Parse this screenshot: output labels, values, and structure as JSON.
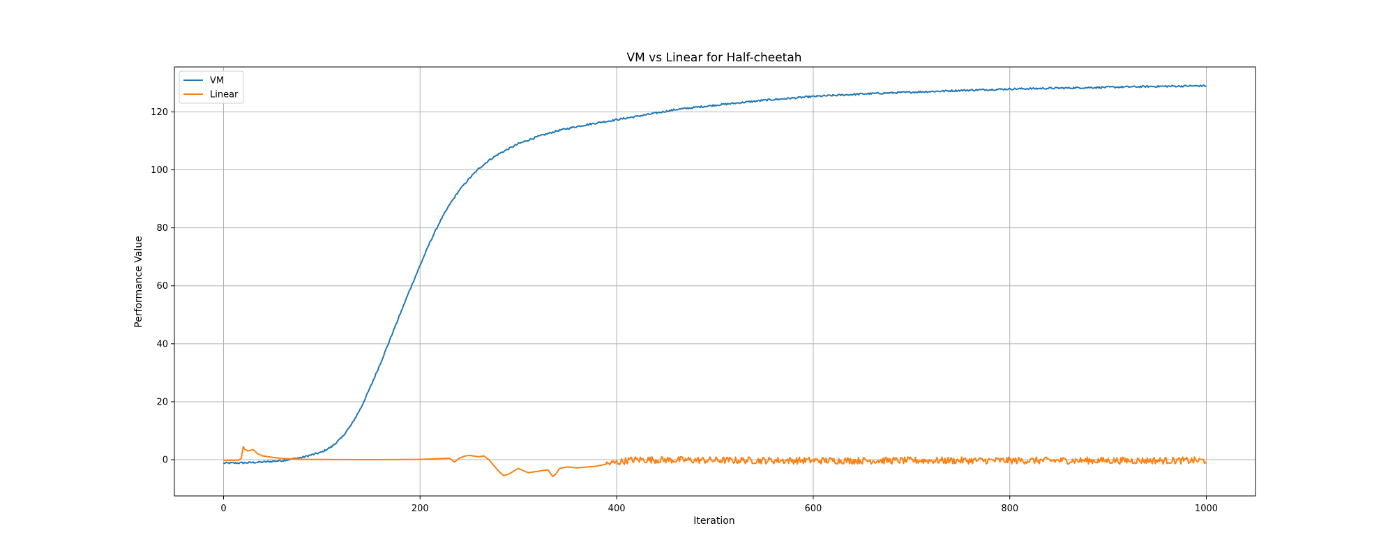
{
  "chart_data": {
    "type": "line",
    "title": "VM vs Linear for Half-cheetah",
    "xlabel": "Iteration",
    "ylabel": "Performance Value",
    "xlim": [
      -50,
      1050
    ],
    "ylim": [
      -12.5,
      135.5
    ],
    "xticks": [
      0,
      200,
      400,
      600,
      800,
      1000
    ],
    "yticks": [
      0,
      20,
      40,
      60,
      80,
      100,
      120
    ],
    "grid": true,
    "legend_position": "top-left",
    "series": [
      {
        "name": "VM",
        "color": "#1f77b4",
        "noise": 0.3,
        "x": [
          0,
          20,
          40,
          60,
          80,
          100,
          110,
          120,
          130,
          140,
          150,
          160,
          170,
          180,
          190,
          200,
          210,
          220,
          230,
          240,
          250,
          260,
          270,
          280,
          300,
          320,
          340,
          360,
          380,
          400,
          430,
          460,
          500,
          550,
          600,
          650,
          700,
          750,
          800,
          850,
          900,
          950,
          1000
        ],
        "y": [
          -1.2,
          -1.1,
          -0.8,
          -0.3,
          0.8,
          2.6,
          4.5,
          7.5,
          12,
          18,
          25.5,
          33.5,
          42,
          50.5,
          59,
          67,
          75,
          82,
          88,
          93,
          97,
          100.5,
          103.3,
          105.5,
          109,
          111.5,
          113.5,
          115,
          116.2,
          117.3,
          119,
          120.8,
          122.3,
          124,
          125.3,
          126.2,
          126.8,
          127.4,
          127.9,
          128.2,
          128.5,
          128.8,
          129
        ]
      },
      {
        "name": "Linear",
        "color": "#ff7f0e",
        "noise": 1.2,
        "noise_from": 390,
        "x": [
          0,
          15,
          18,
          20,
          22,
          25,
          30,
          35,
          40,
          50,
          60,
          80,
          150,
          200,
          230,
          235,
          240,
          245,
          250,
          260,
          265,
          270,
          275,
          280,
          285,
          290,
          300,
          310,
          320,
          330,
          335,
          338,
          342,
          350,
          360,
          370,
          380,
          390,
          400,
          410,
          420,
          500,
          600,
          700,
          800,
          900,
          1000
        ],
        "y": [
          -0.2,
          -0.2,
          0.5,
          4.5,
          3.5,
          3.0,
          3.5,
          2.0,
          1.3,
          0.8,
          0.4,
          0.1,
          0.0,
          0.1,
          0.5,
          -0.8,
          0.5,
          1.2,
          1.5,
          1.0,
          1.3,
          0.0,
          -2.0,
          -4.0,
          -5.5,
          -5.0,
          -3.0,
          -4.5,
          -4.0,
          -3.5,
          -5.8,
          -5.0,
          -3.0,
          -2.5,
          -2.8,
          -2.5,
          -2.2,
          -1.5,
          -1.0,
          -0.3,
          0.0,
          -0.2,
          -0.3,
          -0.3,
          -0.3,
          -0.3,
          -0.3
        ]
      }
    ]
  }
}
